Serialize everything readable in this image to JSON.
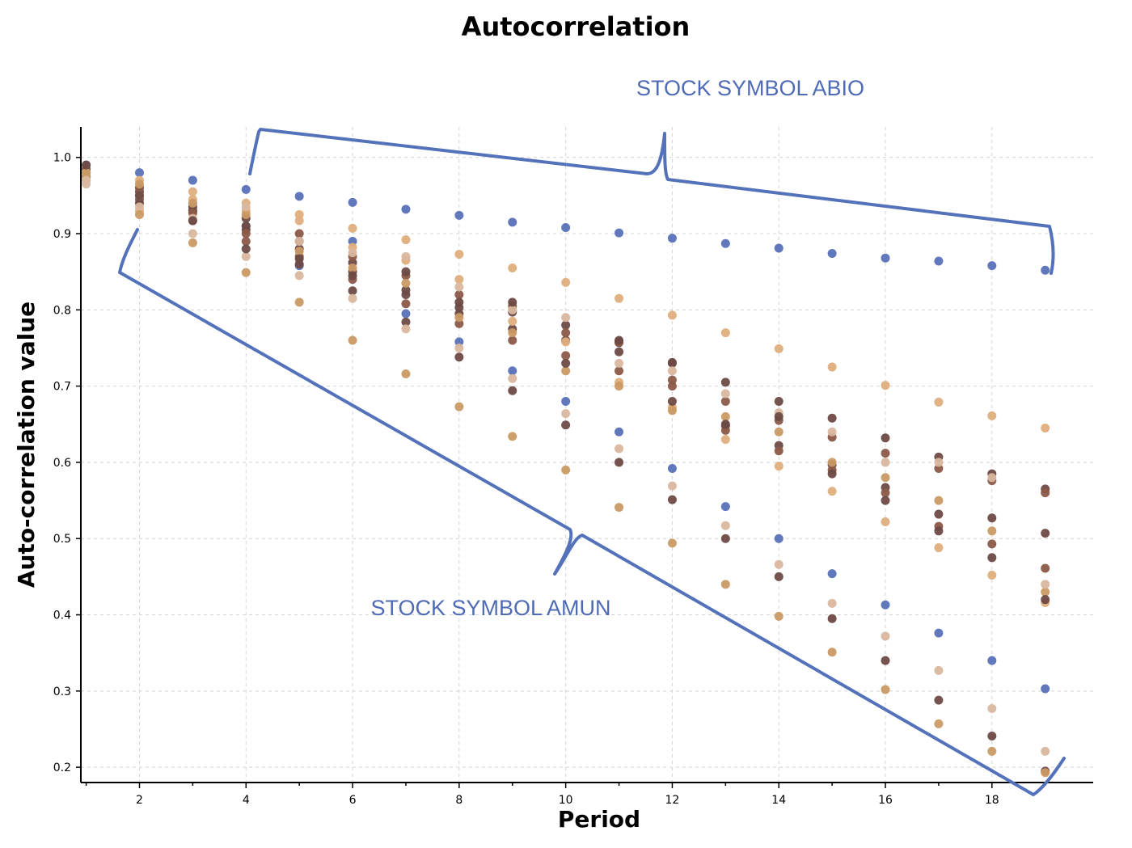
{
  "chart_data": {
    "type": "scatter",
    "title": "Autocorrelation",
    "xlabel": "Period",
    "ylabel": "Auto-correlation value",
    "xlim": [
      0.9,
      19.9
    ],
    "ylim": [
      0.18,
      1.04
    ],
    "xticks": [
      2,
      4,
      6,
      8,
      10,
      12,
      14,
      16,
      18
    ],
    "yticks": [
      0.2,
      0.3,
      0.4,
      0.5,
      0.6,
      0.7,
      0.8,
      0.9,
      1.0
    ],
    "grid": true,
    "annotations": [
      {
        "text": "STOCK SYMBOL ABIO"
      },
      {
        "text": "STOCK SYMBOL AMUN"
      }
    ],
    "colors": {
      "blue": "#5a71b8",
      "dark_brown": "#6e4a45",
      "brown": "#8b5a48",
      "tan": "#dfae7d",
      "light_tan": "#d9b79f",
      "gold": "#c99a64",
      "annotation": "#4f6bb5"
    },
    "series": [
      {
        "color": "#5a71b8",
        "points": [
          [
            1,
            0.99
          ],
          [
            2,
            0.98
          ],
          [
            3,
            0.97
          ],
          [
            4,
            0.958
          ],
          [
            5,
            0.949
          ],
          [
            6,
            0.941
          ],
          [
            7,
            0.932
          ],
          [
            8,
            0.924
          ],
          [
            9,
            0.915
          ],
          [
            10,
            0.908
          ],
          [
            11,
            0.901
          ],
          [
            12,
            0.894
          ],
          [
            13,
            0.887
          ],
          [
            14,
            0.881
          ],
          [
            15,
            0.874
          ],
          [
            16,
            0.868
          ],
          [
            17,
            0.864
          ],
          [
            18,
            0.858
          ],
          [
            19,
            0.852
          ]
        ]
      },
      {
        "color": "#5a71b8",
        "points": [
          [
            1,
            0.985
          ],
          [
            2,
            0.96
          ],
          [
            3,
            0.94
          ],
          [
            4,
            0.91
          ],
          [
            5,
            0.858
          ],
          [
            6,
            0.89
          ],
          [
            7,
            0.795
          ],
          [
            8,
            0.758
          ],
          [
            9,
            0.72
          ],
          [
            10,
            0.68
          ],
          [
            11,
            0.64
          ],
          [
            12,
            0.592
          ],
          [
            13,
            0.542
          ],
          [
            14,
            0.5
          ],
          [
            15,
            0.454
          ],
          [
            16,
            0.413
          ],
          [
            17,
            0.376
          ],
          [
            18,
            0.34
          ],
          [
            19,
            0.303
          ]
        ]
      },
      {
        "color": "#6e4a45",
        "points": [
          [
            1,
            0.98
          ],
          [
            2,
            0.955
          ],
          [
            3,
            0.93
          ],
          [
            4,
            0.91
          ],
          [
            5,
            0.88
          ],
          [
            6,
            0.85
          ],
          [
            7,
            0.82
          ],
          [
            8,
            0.795
          ],
          [
            9,
            0.775
          ],
          [
            10,
            0.76
          ],
          [
            11,
            0.745
          ],
          [
            12,
            0.73
          ],
          [
            13,
            0.705
          ],
          [
            14,
            0.68
          ],
          [
            15,
            0.658
          ],
          [
            16,
            0.632
          ],
          [
            17,
            0.607
          ],
          [
            18,
            0.585
          ],
          [
            19,
            0.565
          ]
        ]
      },
      {
        "color": "#8b5a48",
        "points": [
          [
            1,
            0.975
          ],
          [
            2,
            0.945
          ],
          [
            3,
            0.917
          ],
          [
            4,
            0.89
          ],
          [
            5,
            0.87
          ],
          [
            6,
            0.84
          ],
          [
            7,
            0.808
          ],
          [
            8,
            0.782
          ],
          [
            9,
            0.76
          ],
          [
            10,
            0.74
          ],
          [
            11,
            0.72
          ],
          [
            12,
            0.708
          ],
          [
            13,
            0.68
          ],
          [
            14,
            0.655
          ],
          [
            15,
            0.633
          ],
          [
            16,
            0.612
          ],
          [
            17,
            0.592
          ],
          [
            18,
            0.576
          ],
          [
            19,
            0.56
          ]
        ]
      },
      {
        "color": "#6e4a45",
        "points": [
          [
            1,
            0.97
          ],
          [
            2,
            0.94
          ],
          [
            3,
            0.93
          ],
          [
            4,
            0.905
          ],
          [
            5,
            0.86
          ],
          [
            6,
            0.825
          ],
          [
            7,
            0.784
          ],
          [
            8,
            0.738
          ],
          [
            9,
            0.694
          ],
          [
            10,
            0.649
          ],
          [
            11,
            0.6
          ],
          [
            12,
            0.551
          ],
          [
            13,
            0.5
          ],
          [
            14,
            0.45
          ],
          [
            15,
            0.395
          ],
          [
            16,
            0.34
          ],
          [
            17,
            0.288
          ],
          [
            18,
            0.241
          ],
          [
            19,
            0.195
          ]
        ]
      },
      {
        "color": "#6e4a45",
        "points": [
          [
            1,
            0.975
          ],
          [
            2,
            0.95
          ],
          [
            3,
            0.935
          ],
          [
            4,
            0.92
          ],
          [
            5,
            0.89
          ],
          [
            6,
            0.862
          ],
          [
            7,
            0.826
          ],
          [
            8,
            0.803
          ],
          [
            9,
            0.797
          ],
          [
            10,
            0.78
          ],
          [
            11,
            0.757
          ],
          [
            12,
            0.731
          ],
          [
            13,
            0.648
          ],
          [
            14,
            0.622
          ],
          [
            15,
            0.597
          ],
          [
            16,
            0.567
          ],
          [
            17,
            0.532
          ],
          [
            18,
            0.527
          ],
          [
            19,
            0.507
          ]
        ]
      },
      {
        "color": "#8b5a48",
        "points": [
          [
            1,
            0.985
          ],
          [
            2,
            0.96
          ],
          [
            3,
            0.927
          ],
          [
            4,
            0.9
          ],
          [
            5,
            0.9
          ],
          [
            6,
            0.87
          ],
          [
            7,
            0.845
          ],
          [
            8,
            0.82
          ],
          [
            9,
            0.805
          ],
          [
            10,
            0.77
          ],
          [
            11,
            0.758
          ],
          [
            12,
            0.7
          ],
          [
            13,
            0.642
          ],
          [
            14,
            0.615
          ],
          [
            15,
            0.59
          ],
          [
            16,
            0.56
          ],
          [
            17,
            0.516
          ],
          [
            18,
            0.493
          ],
          [
            19,
            0.461
          ]
        ]
      },
      {
        "color": "#dfae7d",
        "points": [
          [
            1,
            0.98
          ],
          [
            2,
            0.97
          ],
          [
            3,
            0.955
          ],
          [
            4,
            0.94
          ],
          [
            5,
            0.925
          ],
          [
            6,
            0.907
          ],
          [
            7,
            0.892
          ],
          [
            8,
            0.873
          ],
          [
            9,
            0.855
          ],
          [
            10,
            0.836
          ],
          [
            11,
            0.815
          ],
          [
            12,
            0.793
          ],
          [
            13,
            0.77
          ],
          [
            14,
            0.749
          ],
          [
            15,
            0.725
          ],
          [
            16,
            0.701
          ],
          [
            17,
            0.679
          ],
          [
            18,
            0.661
          ],
          [
            19,
            0.645
          ]
        ]
      },
      {
        "color": "#dfae7d",
        "points": [
          [
            1,
            0.97
          ],
          [
            2,
            0.93
          ],
          [
            3,
            0.945
          ],
          [
            4,
            0.93
          ],
          [
            5,
            0.917
          ],
          [
            6,
            0.882
          ],
          [
            7,
            0.865
          ],
          [
            8,
            0.84
          ],
          [
            9,
            0.785
          ],
          [
            10,
            0.758
          ],
          [
            11,
            0.705
          ],
          [
            12,
            0.672
          ],
          [
            13,
            0.63
          ],
          [
            14,
            0.595
          ],
          [
            15,
            0.562
          ],
          [
            16,
            0.522
          ],
          [
            17,
            0.488
          ],
          [
            18,
            0.452
          ],
          [
            19,
            0.416
          ]
        ]
      },
      {
        "color": "#d9b79f",
        "points": [
          [
            1,
            0.965
          ],
          [
            2,
            0.935
          ],
          [
            3,
            0.9
          ],
          [
            4,
            0.87
          ],
          [
            5,
            0.845
          ],
          [
            6,
            0.815
          ],
          [
            7,
            0.775
          ],
          [
            8,
            0.75
          ],
          [
            9,
            0.71
          ],
          [
            10,
            0.664
          ],
          [
            11,
            0.618
          ],
          [
            12,
            0.569
          ],
          [
            13,
            0.517
          ],
          [
            14,
            0.466
          ],
          [
            15,
            0.415
          ],
          [
            16,
            0.372
          ],
          [
            17,
            0.327
          ],
          [
            18,
            0.277
          ],
          [
            19,
            0.221
          ]
        ]
      },
      {
        "color": "#c99a64",
        "points": [
          [
            1,
            0.975
          ],
          [
            2,
            0.925
          ],
          [
            3,
            0.888
          ],
          [
            4,
            0.849
          ],
          [
            5,
            0.81
          ],
          [
            6,
            0.76
          ],
          [
            7,
            0.716
          ],
          [
            8,
            0.673
          ],
          [
            9,
            0.634
          ],
          [
            10,
            0.59
          ],
          [
            11,
            0.541
          ],
          [
            12,
            0.494
          ],
          [
            13,
            0.44
          ],
          [
            14,
            0.398
          ],
          [
            15,
            0.351
          ],
          [
            16,
            0.302
          ],
          [
            17,
            0.257
          ],
          [
            18,
            0.221
          ],
          [
            19,
            0.193
          ]
        ]
      },
      {
        "color": "#c99a64",
        "points": [
          [
            1,
            0.98
          ],
          [
            2,
            0.965
          ],
          [
            3,
            0.94
          ],
          [
            4,
            0.925
          ],
          [
            5,
            0.877
          ],
          [
            6,
            0.855
          ],
          [
            7,
            0.835
          ],
          [
            8,
            0.79
          ],
          [
            9,
            0.77
          ],
          [
            10,
            0.72
          ],
          [
            11,
            0.7
          ],
          [
            12,
            0.668
          ],
          [
            13,
            0.66
          ],
          [
            14,
            0.64
          ],
          [
            15,
            0.6
          ],
          [
            16,
            0.58
          ],
          [
            17,
            0.55
          ],
          [
            18,
            0.51
          ],
          [
            19,
            0.43
          ]
        ]
      },
      {
        "color": "#d9b79f",
        "points": [
          [
            1,
            0.97
          ],
          [
            2,
            0.95
          ],
          [
            3,
            0.92
          ],
          [
            4,
            0.935
          ],
          [
            5,
            0.89
          ],
          [
            6,
            0.875
          ],
          [
            7,
            0.87
          ],
          [
            8,
            0.83
          ],
          [
            9,
            0.8
          ],
          [
            10,
            0.79
          ],
          [
            11,
            0.73
          ],
          [
            12,
            0.72
          ],
          [
            13,
            0.69
          ],
          [
            14,
            0.665
          ],
          [
            15,
            0.64
          ],
          [
            16,
            0.6
          ],
          [
            17,
            0.6
          ],
          [
            18,
            0.58
          ],
          [
            19,
            0.44
          ]
        ]
      },
      {
        "color": "#6e4a45",
        "points": [
          [
            1,
            0.99
          ],
          [
            2,
            0.95
          ],
          [
            3,
            0.917
          ],
          [
            4,
            0.88
          ],
          [
            5,
            0.867
          ],
          [
            6,
            0.845
          ],
          [
            7,
            0.85
          ],
          [
            8,
            0.81
          ],
          [
            9,
            0.81
          ],
          [
            10,
            0.73
          ],
          [
            11,
            0.76
          ],
          [
            12,
            0.68
          ],
          [
            13,
            0.65
          ],
          [
            14,
            0.66
          ],
          [
            15,
            0.585
          ],
          [
            16,
            0.55
          ],
          [
            17,
            0.51
          ],
          [
            18,
            0.475
          ],
          [
            19,
            0.42
          ]
        ]
      }
    ]
  }
}
